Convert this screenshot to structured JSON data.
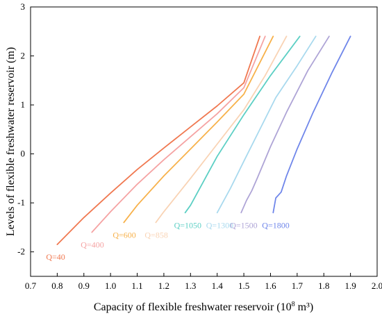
{
  "chart_data": {
    "type": "line",
    "title": "",
    "xlabel_main": "Capacity of flexible freshwater reservoir (10",
    "xlabel_sup": "8",
    "xlabel_end": " m³)",
    "ylabel": "Levels of flexible freshwater reservoir (m)",
    "xlim": [
      0.7,
      2.0
    ],
    "ylim": [
      -2.5,
      3
    ],
    "xticks": [
      "0.7",
      "0.8",
      "0.9",
      "1.0",
      "1.1",
      "1.2",
      "1.3",
      "1.4",
      "1.5",
      "1.6",
      "1.7",
      "1.8",
      "1.9",
      "2.0"
    ],
    "yticks": [
      "-2",
      "-1",
      "0",
      "1",
      "2",
      "3"
    ],
    "grid": false,
    "series": [
      {
        "name": "Q=40",
        "color": "#f07850",
        "points": [
          [
            0.8,
            -1.85
          ],
          [
            0.9,
            -1.3
          ],
          [
            1.0,
            -0.8
          ],
          [
            1.1,
            -0.32
          ],
          [
            1.2,
            0.12
          ],
          [
            1.3,
            0.55
          ],
          [
            1.4,
            0.98
          ],
          [
            1.5,
            1.45
          ],
          [
            1.56,
            2.4
          ]
        ]
      },
      {
        "name": "Q=400",
        "color": "#f5a3a3",
        "points": [
          [
            0.93,
            -1.6
          ],
          [
            1.0,
            -1.18
          ],
          [
            1.1,
            -0.62
          ],
          [
            1.2,
            -0.12
          ],
          [
            1.3,
            0.35
          ],
          [
            1.4,
            0.82
          ],
          [
            1.5,
            1.35
          ],
          [
            1.58,
            2.4
          ]
        ]
      },
      {
        "name": "Q=600",
        "color": "#f7b14a",
        "points": [
          [
            1.05,
            -1.4
          ],
          [
            1.1,
            -1.05
          ],
          [
            1.2,
            -0.45
          ],
          [
            1.3,
            0.1
          ],
          [
            1.4,
            0.65
          ],
          [
            1.5,
            1.22
          ],
          [
            1.61,
            2.4
          ]
        ]
      },
      {
        "name": "Q=858",
        "color": "#f9d3b4",
        "points": [
          [
            1.17,
            -1.4
          ],
          [
            1.2,
            -1.18
          ],
          [
            1.3,
            -0.5
          ],
          [
            1.4,
            0.2
          ],
          [
            1.5,
            0.9
          ],
          [
            1.58,
            1.6
          ],
          [
            1.66,
            2.4
          ]
        ]
      },
      {
        "name": "Q=1050",
        "color": "#5ccfc4",
        "points": [
          [
            1.28,
            -1.2
          ],
          [
            1.3,
            -1.05
          ],
          [
            1.35,
            -0.55
          ],
          [
            1.4,
            -0.05
          ],
          [
            1.5,
            0.8
          ],
          [
            1.6,
            1.6
          ],
          [
            1.71,
            2.4
          ]
        ]
      },
      {
        "name": "Q=1300",
        "color": "#a8d9ee",
        "points": [
          [
            1.4,
            -1.2
          ],
          [
            1.45,
            -0.7
          ],
          [
            1.5,
            -0.15
          ],
          [
            1.56,
            0.5
          ],
          [
            1.62,
            1.15
          ],
          [
            1.7,
            1.8
          ],
          [
            1.77,
            2.4
          ]
        ]
      },
      {
        "name": "Q=1500",
        "color": "#aea4d6",
        "points": [
          [
            1.49,
            -1.2
          ],
          [
            1.51,
            -0.95
          ],
          [
            1.53,
            -0.75
          ],
          [
            1.55,
            -0.5
          ],
          [
            1.6,
            0.15
          ],
          [
            1.66,
            0.85
          ],
          [
            1.74,
            1.7
          ],
          [
            1.82,
            2.4
          ]
        ]
      },
      {
        "name": "Q=1800",
        "color": "#6f86ea",
        "points": [
          [
            1.61,
            -1.2
          ],
          [
            1.62,
            -0.9
          ],
          [
            1.64,
            -0.78
          ],
          [
            1.66,
            -0.45
          ],
          [
            1.7,
            0.1
          ],
          [
            1.76,
            0.85
          ],
          [
            1.83,
            1.65
          ],
          [
            1.9,
            2.4
          ]
        ]
      }
    ]
  }
}
